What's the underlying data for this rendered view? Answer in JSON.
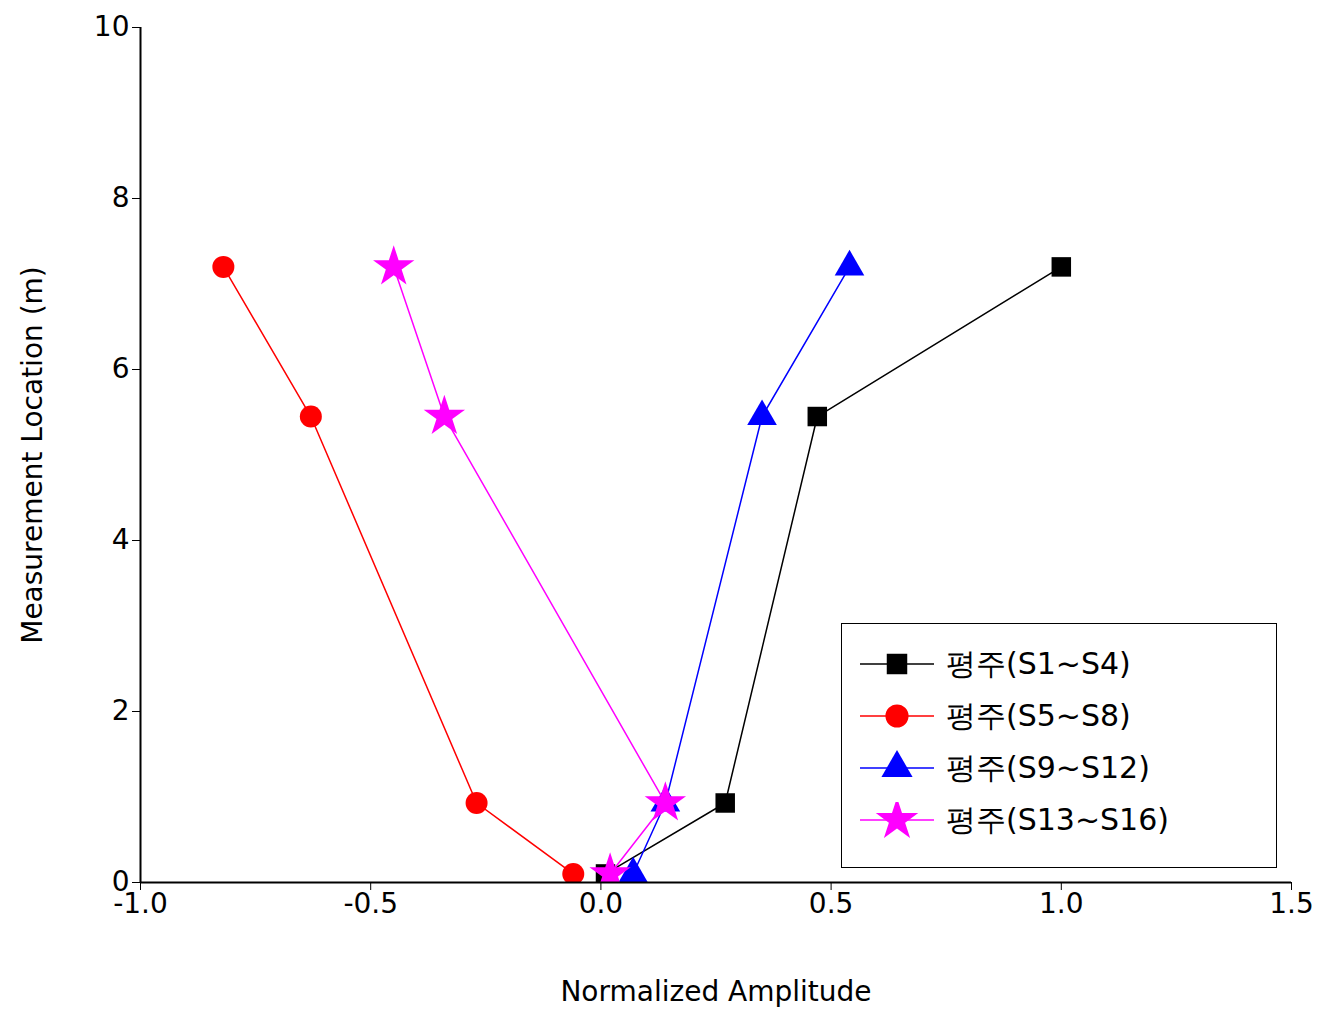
{
  "chart_data": {
    "type": "line",
    "xlabel": "Normalized Amplitude",
    "ylabel": "Measurement Location (m)",
    "xlim": [
      -1.0,
      1.5
    ],
    "xticks": [
      {
        "value": -1,
        "label": "-1.0"
      },
      {
        "value": -0.5,
        "label": "-0.5"
      },
      {
        "value": 0,
        "label": "0.0"
      },
      {
        "value": 0.5,
        "label": "0.5"
      },
      {
        "value": 1,
        "label": "1.0"
      },
      {
        "value": 1.5,
        "label": "1.5"
      }
    ],
    "ylim": [
      0,
      10
    ],
    "yticks": [
      0,
      2,
      4,
      6,
      8,
      10
    ],
    "legend": "lower right",
    "series": [
      {
        "name": "평주(S1~S4)",
        "color": "#000000",
        "marker": "square",
        "x": [
          0.01,
          0.27,
          0.47,
          1.0
        ],
        "values": [
          0.1,
          0.93,
          5.45,
          7.2
        ]
      },
      {
        "name": "평주(S5~S8)",
        "color": "#ff0000",
        "marker": "circle",
        "x": [
          -0.06,
          -0.27,
          -0.63,
          -0.82
        ],
        "values": [
          0.1,
          0.93,
          5.45,
          7.2
        ]
      },
      {
        "name": "평주(S9~S12)",
        "color": "#0000ff",
        "marker": "triangle",
        "x": [
          0.07,
          0.14,
          0.35,
          0.54
        ],
        "values": [
          0.1,
          0.93,
          5.45,
          7.2
        ]
      },
      {
        "name": "평주(S13~S16)",
        "color": "#ff00ff",
        "marker": "star",
        "x": [
          0.02,
          0.14,
          -0.34,
          -0.45
        ],
        "values": [
          0.1,
          0.93,
          5.45,
          7.2
        ]
      }
    ]
  }
}
